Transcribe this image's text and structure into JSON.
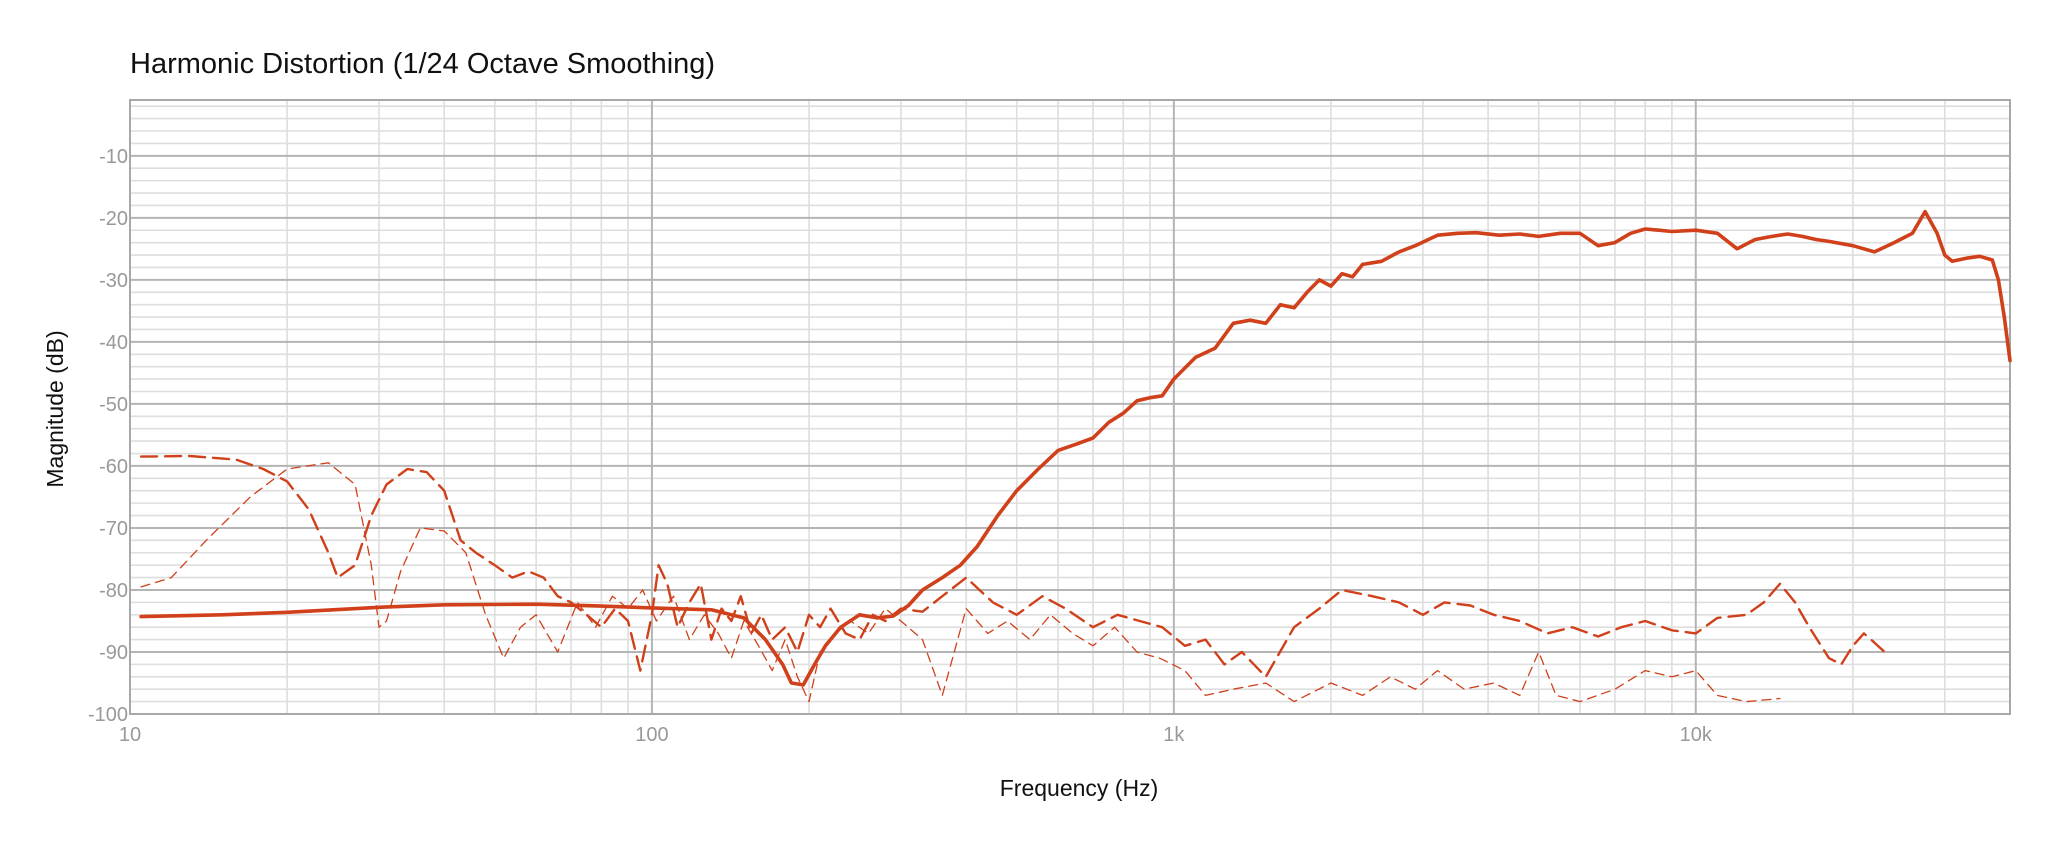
{
  "chart_data": {
    "type": "line",
    "title": "Harmonic Distortion",
    "subtitle": "(1/24 Octave Smoothing)",
    "xlabel": "Frequency (Hz)",
    "ylabel": "Magnitude (dB)",
    "xscale": "log",
    "xlim": [
      10,
      40000
    ],
    "ylim": [
      -100,
      -1
    ],
    "grid": true,
    "x_ticks": [
      {
        "value": 10,
        "label": "10"
      },
      {
        "value": 100,
        "label": "100"
      },
      {
        "value": 1000,
        "label": "1k"
      },
      {
        "value": 10000,
        "label": "10k"
      }
    ],
    "y_ticks": [
      {
        "value": -10,
        "label": "-10"
      },
      {
        "value": -20,
        "label": "-20"
      },
      {
        "value": -30,
        "label": "-30"
      },
      {
        "value": -40,
        "label": "-40"
      },
      {
        "value": -50,
        "label": "-50"
      },
      {
        "value": -60,
        "label": "-60"
      },
      {
        "value": -70,
        "label": "-70"
      },
      {
        "value": -80,
        "label": "-80"
      },
      {
        "value": -90,
        "label": "-90"
      },
      {
        "value": -100,
        "label": "-100"
      }
    ],
    "colors": {
      "series": "#d0401a",
      "grid_major": "#b4b4b4",
      "grid_minor": "#dedede",
      "frame": "#a8a8a8"
    },
    "series": [
      {
        "style": "solid",
        "points": [
          [
            10.5,
            -84.3
          ],
          [
            15,
            -84.0
          ],
          [
            20,
            -83.6
          ],
          [
            30,
            -82.8
          ],
          [
            40,
            -82.4
          ],
          [
            60,
            -82.3
          ],
          [
            80,
            -82.6
          ],
          [
            100,
            -82.9
          ],
          [
            130,
            -83.2
          ],
          [
            150,
            -84.5
          ],
          [
            165,
            -88
          ],
          [
            178,
            -92
          ],
          [
            185,
            -95
          ],
          [
            195,
            -95.3
          ],
          [
            205,
            -92
          ],
          [
            215,
            -89
          ],
          [
            230,
            -86
          ],
          [
            250,
            -84
          ],
          [
            270,
            -84.5
          ],
          [
            290,
            -84.2
          ],
          [
            310,
            -82.5
          ],
          [
            330,
            -80
          ],
          [
            360,
            -78
          ],
          [
            390,
            -76
          ],
          [
            420,
            -73
          ],
          [
            460,
            -68
          ],
          [
            500,
            -64
          ],
          [
            550,
            -60.5
          ],
          [
            600,
            -57.5
          ],
          [
            650,
            -56.5
          ],
          [
            700,
            -55.5
          ],
          [
            750,
            -53
          ],
          [
            800,
            -51.5
          ],
          [
            850,
            -49.5
          ],
          [
            900,
            -49
          ],
          [
            950,
            -48.7
          ],
          [
            1000,
            -46
          ],
          [
            1100,
            -42.5
          ],
          [
            1200,
            -41
          ],
          [
            1300,
            -37
          ],
          [
            1400,
            -36.5
          ],
          [
            1500,
            -37
          ],
          [
            1600,
            -34
          ],
          [
            1700,
            -34.5
          ],
          [
            1800,
            -32
          ],
          [
            1900,
            -30
          ],
          [
            2000,
            -31
          ],
          [
            2100,
            -29
          ],
          [
            2200,
            -29.5
          ],
          [
            2300,
            -27.5
          ],
          [
            2500,
            -27
          ],
          [
            2700,
            -25.5
          ],
          [
            2900,
            -24.5
          ],
          [
            3200,
            -22.8
          ],
          [
            3500,
            -22.5
          ],
          [
            3800,
            -22.4
          ],
          [
            4200,
            -22.8
          ],
          [
            4600,
            -22.6
          ],
          [
            5000,
            -23
          ],
          [
            5500,
            -22.5
          ],
          [
            6000,
            -22.5
          ],
          [
            6500,
            -24.5
          ],
          [
            7000,
            -24
          ],
          [
            7500,
            -22.5
          ],
          [
            8000,
            -21.8
          ],
          [
            8500,
            -22
          ],
          [
            9000,
            -22.2
          ],
          [
            10000,
            -22
          ],
          [
            11000,
            -22.5
          ],
          [
            12000,
            -25
          ],
          [
            13000,
            -23.5
          ],
          [
            14000,
            -23
          ],
          [
            15000,
            -22.6
          ],
          [
            16000,
            -23
          ],
          [
            17000,
            -23.5
          ],
          [
            18000,
            -23.8
          ],
          [
            20000,
            -24.5
          ],
          [
            22000,
            -25.5
          ],
          [
            24000,
            -24
          ],
          [
            26000,
            -22.5
          ],
          [
            27500,
            -19
          ],
          [
            29000,
            -22.5
          ],
          [
            30000,
            -26
          ],
          [
            31000,
            -27
          ],
          [
            33000,
            -26.5
          ],
          [
            35000,
            -26.2
          ],
          [
            37000,
            -26.8
          ],
          [
            38000,
            -30
          ],
          [
            39000,
            -36
          ],
          [
            40000,
            -43
          ]
        ]
      },
      {
        "style": "long-dash",
        "points": [
          [
            10.5,
            -58.5
          ],
          [
            13,
            -58.4
          ],
          [
            16,
            -59
          ],
          [
            18,
            -60.5
          ],
          [
            20,
            -62.5
          ],
          [
            22,
            -67
          ],
          [
            24,
            -74
          ],
          [
            25,
            -78
          ],
          [
            27,
            -76
          ],
          [
            29,
            -68
          ],
          [
            31,
            -63
          ],
          [
            34,
            -60.5
          ],
          [
            37,
            -61
          ],
          [
            40,
            -64
          ],
          [
            43,
            -72
          ],
          [
            46,
            -74
          ],
          [
            50,
            -76
          ],
          [
            54,
            -78
          ],
          [
            58,
            -77
          ],
          [
            62,
            -78
          ],
          [
            66,
            -81
          ],
          [
            70,
            -82
          ],
          [
            75,
            -84
          ],
          [
            80,
            -86
          ],
          [
            85,
            -83
          ],
          [
            90,
            -85
          ],
          [
            95,
            -93
          ],
          [
            100,
            -84
          ],
          [
            103,
            -76
          ],
          [
            107,
            -79
          ],
          [
            112,
            -86
          ],
          [
            118,
            -82
          ],
          [
            124,
            -79
          ],
          [
            130,
            -88
          ],
          [
            136,
            -83
          ],
          [
            142,
            -85
          ],
          [
            148,
            -81
          ],
          [
            155,
            -87
          ],
          [
            162,
            -84
          ],
          [
            170,
            -88
          ],
          [
            180,
            -86
          ],
          [
            190,
            -90
          ],
          [
            200,
            -84
          ],
          [
            210,
            -86
          ],
          [
            220,
            -83
          ],
          [
            235,
            -87
          ],
          [
            250,
            -88
          ],
          [
            265,
            -84
          ],
          [
            280,
            -85
          ],
          [
            300,
            -83
          ],
          [
            330,
            -83.5
          ],
          [
            360,
            -81
          ],
          [
            400,
            -78
          ],
          [
            450,
            -82
          ],
          [
            500,
            -84
          ],
          [
            560,
            -81
          ],
          [
            620,
            -83
          ],
          [
            700,
            -86
          ],
          [
            780,
            -84
          ],
          [
            860,
            -85
          ],
          [
            950,
            -86
          ],
          [
            1050,
            -89
          ],
          [
            1150,
            -88
          ],
          [
            1250,
            -92
          ],
          [
            1350,
            -90
          ],
          [
            1500,
            -94
          ],
          [
            1700,
            -86
          ],
          [
            1900,
            -83
          ],
          [
            2100,
            -80
          ],
          [
            2400,
            -81
          ],
          [
            2700,
            -82
          ],
          [
            3000,
            -84
          ],
          [
            3300,
            -82
          ],
          [
            3700,
            -82.5
          ],
          [
            4100,
            -84
          ],
          [
            4600,
            -85
          ],
          [
            5200,
            -87
          ],
          [
            5800,
            -86
          ],
          [
            6500,
            -87.5
          ],
          [
            7200,
            -86
          ],
          [
            8000,
            -85
          ],
          [
            9000,
            -86.5
          ],
          [
            10000,
            -87
          ],
          [
            11000,
            -84.5
          ],
          [
            12500,
            -84
          ],
          [
            13500,
            -82
          ],
          [
            14500,
            -79
          ],
          [
            15500,
            -82
          ],
          [
            16500,
            -86
          ],
          [
            18000,
            -91
          ],
          [
            19000,
            -92
          ],
          [
            20000,
            -89
          ],
          [
            21000,
            -87
          ],
          [
            22000,
            -88.5
          ],
          [
            23000,
            -90
          ]
        ]
      },
      {
        "style": "short-dash",
        "points": [
          [
            10.5,
            -79.5
          ],
          [
            12,
            -78
          ],
          [
            14,
            -72
          ],
          [
            17,
            -65
          ],
          [
            20,
            -60.5
          ],
          [
            24,
            -59.5
          ],
          [
            27,
            -63
          ],
          [
            29,
            -76
          ],
          [
            30,
            -86
          ],
          [
            31,
            -85
          ],
          [
            33,
            -77
          ],
          [
            36,
            -70
          ],
          [
            40,
            -70.5
          ],
          [
            44,
            -74
          ],
          [
            48,
            -84
          ],
          [
            52,
            -91
          ],
          [
            56,
            -86
          ],
          [
            60,
            -84
          ],
          [
            66,
            -90
          ],
          [
            72,
            -82
          ],
          [
            78,
            -86
          ],
          [
            84,
            -81
          ],
          [
            90,
            -83
          ],
          [
            96,
            -80
          ],
          [
            102,
            -85
          ],
          [
            110,
            -81
          ],
          [
            118,
            -88
          ],
          [
            126,
            -84
          ],
          [
            134,
            -87
          ],
          [
            142,
            -91
          ],
          [
            150,
            -85
          ],
          [
            160,
            -89
          ],
          [
            170,
            -93
          ],
          [
            180,
            -88
          ],
          [
            190,
            -94
          ],
          [
            200,
            -98
          ],
          [
            210,
            -90
          ],
          [
            225,
            -87
          ],
          [
            240,
            -85
          ],
          [
            260,
            -87
          ],
          [
            280,
            -83
          ],
          [
            300,
            -85
          ],
          [
            330,
            -88
          ],
          [
            360,
            -97
          ],
          [
            400,
            -83
          ],
          [
            440,
            -87
          ],
          [
            480,
            -85
          ],
          [
            530,
            -88
          ],
          [
            580,
            -84
          ],
          [
            640,
            -87
          ],
          [
            700,
            -89
          ],
          [
            770,
            -86
          ],
          [
            850,
            -90
          ],
          [
            940,
            -91
          ],
          [
            1050,
            -93
          ],
          [
            1150,
            -97
          ],
          [
            1300,
            -96
          ],
          [
            1500,
            -95
          ],
          [
            1700,
            -98
          ],
          [
            2000,
            -95
          ],
          [
            2300,
            -97
          ],
          [
            2600,
            -94
          ],
          [
            2900,
            -96
          ],
          [
            3200,
            -93
          ],
          [
            3600,
            -96
          ],
          [
            4100,
            -95
          ],
          [
            4600,
            -97
          ],
          [
            5000,
            -90
          ],
          [
            5400,
            -97
          ],
          [
            6000,
            -98
          ],
          [
            7000,
            -96
          ],
          [
            8000,
            -93
          ],
          [
            9000,
            -94
          ],
          [
            10000,
            -93
          ],
          [
            11000,
            -97
          ],
          [
            12500,
            -98
          ],
          [
            14500,
            -97.5
          ]
        ]
      }
    ]
  }
}
